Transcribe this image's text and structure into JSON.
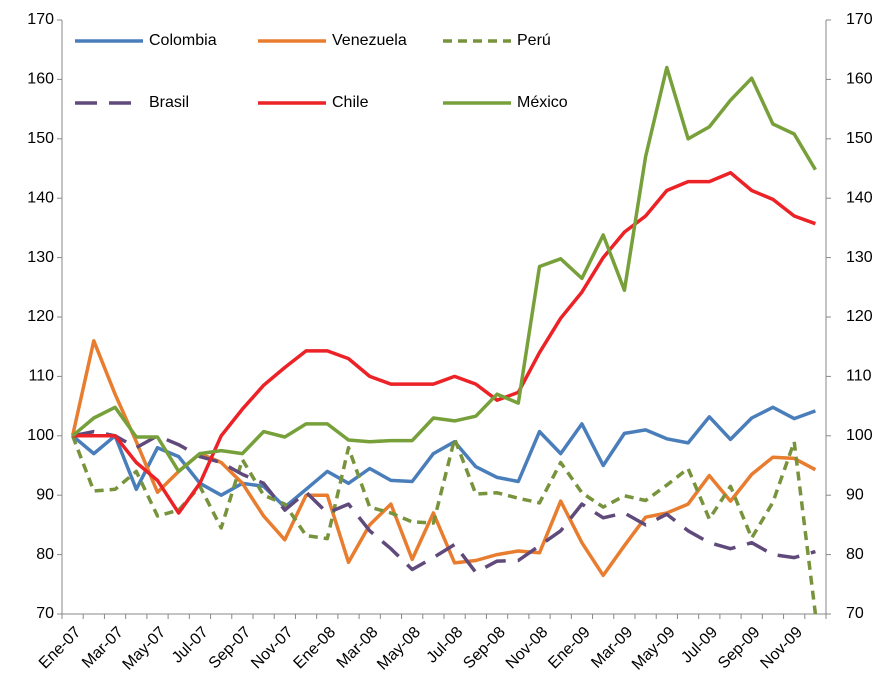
{
  "chart_data": {
    "type": "line",
    "categories": [
      "Ene-07",
      null,
      "Mar-07",
      null,
      "May-07",
      null,
      "Jul-07",
      null,
      "Sep-07",
      null,
      "Nov-07",
      null,
      "Ene-08",
      null,
      "Mar-08",
      null,
      "May-08",
      null,
      "Jul-08",
      null,
      "Sep-08",
      null,
      "Nov-08",
      null,
      "Ene-09",
      null,
      "Mar-09",
      null,
      "May-09",
      null,
      "Jul-09",
      null,
      "Sep-09",
      null,
      "Nov-09",
      null
    ],
    "series": [
      {
        "name": "Colombia",
        "color": "#4a7ebb",
        "style": "solid",
        "values": [
          100,
          97,
          100,
          91,
          98,
          96.5,
          92,
          90,
          92,
          91.5,
          88,
          91,
          94,
          92,
          94.5,
          92.5,
          92.3,
          97,
          99,
          94.8,
          93,
          92.3,
          100.7,
          97,
          102,
          95,
          100.4,
          101,
          99.5,
          98.8,
          103.2,
          99.4,
          103,
          104.8,
          102.9,
          104.2
        ]
      },
      {
        "name": "Venezuela",
        "color": "#e87d30",
        "style": "solid",
        "values": [
          100,
          116,
          107,
          99,
          90.5,
          94,
          97,
          95.5,
          92,
          86.5,
          82.5,
          90,
          90,
          78.7,
          85,
          88.5,
          79.2,
          87,
          78.6,
          79,
          80,
          80.6,
          80.3,
          89,
          82,
          76.5,
          81.5,
          86.3,
          87,
          88.5,
          93.3,
          89,
          93.5,
          96.4,
          96.2,
          94.3
        ]
      },
      {
        "name": "Perú",
        "color": "#77933c",
        "style": "dash",
        "values": [
          100,
          90.7,
          91,
          94,
          86.5,
          87.5,
          91.5,
          84.5,
          96,
          90,
          88.5,
          83.2,
          82.7,
          98,
          88,
          87,
          85.5,
          85.3,
          99.5,
          90.2,
          90.4,
          89.5,
          88.7,
          95.5,
          90.4,
          88,
          89.9,
          89.1,
          91.7,
          94.5,
          86,
          91.5,
          82.8,
          88.8,
          99,
          70
        ]
      },
      {
        "name": "Brasil",
        "color": "#604a7b",
        "style": "longdash",
        "values": [
          100,
          100.7,
          100,
          98,
          100,
          98.5,
          96.5,
          95.5,
          93.5,
          92,
          87.5,
          90.5,
          87,
          88.5,
          84,
          81,
          77.5,
          79.5,
          81.7,
          77,
          78.9,
          79,
          81.5,
          84,
          88.5,
          86.2,
          87,
          85,
          86.8,
          84,
          82,
          81,
          82,
          80,
          79.5,
          80.5
        ]
      },
      {
        "name": "Chile",
        "color": "#ec2227",
        "style": "solid",
        "values": [
          100,
          100,
          100,
          95.5,
          92.5,
          87,
          92,
          100,
          104.5,
          108.5,
          111.5,
          114.3,
          114.3,
          113,
          110,
          108.7,
          108.7,
          108.7,
          110,
          108.7,
          106,
          107.3,
          114,
          119.8,
          124.2,
          130,
          134.3,
          137,
          141.3,
          142.8,
          142.8,
          144.3,
          141.3,
          139.8,
          137,
          135.7
        ]
      },
      {
        "name": "México",
        "color": "#77a03a",
        "style": "solid",
        "values": [
          100,
          103,
          104.8,
          99.8,
          99.8,
          94,
          97,
          97.5,
          97,
          100.7,
          99.8,
          102,
          102,
          99.3,
          99,
          99.2,
          99.2,
          103,
          102.5,
          103.3,
          107,
          105.5,
          128.5,
          129.8,
          126.5,
          133.8,
          124.5,
          147,
          162,
          150,
          152,
          156.5,
          160.2,
          152.5,
          150.8,
          144.8
        ]
      }
    ],
    "ylim": [
      70,
      170
    ],
    "yticks": [
      70,
      80,
      90,
      100,
      110,
      120,
      130,
      140,
      150,
      160,
      170
    ],
    "y2lim": [
      70,
      170
    ],
    "y2ticks": [
      70,
      80,
      90,
      100,
      110,
      120,
      130,
      140,
      150,
      160,
      170
    ],
    "grid": false,
    "legend": "top-left"
  }
}
